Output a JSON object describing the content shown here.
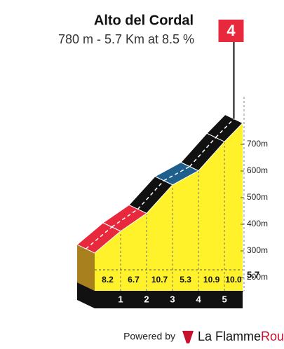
{
  "chart_data": {
    "type": "climb-profile",
    "title": "Alto del Cordal",
    "subtitle": "780 m - 5.7 Km at 8.5 %",
    "category": "4",
    "x": [
      0,
      1,
      2,
      3,
      4,
      5,
      5.7
    ],
    "elevations": [
      292,
      374,
      441,
      548,
      601,
      710,
      780
    ],
    "gradients": [
      8.2,
      6.7,
      10.7,
      5.3,
      10.9,
      10.0
    ],
    "value_labels": [
      "8.2",
      "6.7",
      "10.7",
      "5.3",
      "10.9",
      "10.0"
    ],
    "segment_colors": [
      "#e8283c",
      "#e8283c",
      "#111111",
      "#1f5f8b",
      "#111111",
      "#111111"
    ],
    "xlim": [
      0,
      5.7
    ],
    "xticks": [
      1,
      2,
      3,
      4,
      5,
      5.7
    ],
    "ylim": [
      150,
      800
    ],
    "yticks": [
      {
        "value": 200,
        "label": "200m"
      },
      {
        "value": 300,
        "label": "300m"
      },
      {
        "value": 400,
        "label": "400m"
      },
      {
        "value": 500,
        "label": "500m"
      },
      {
        "value": 600,
        "label": "600m"
      },
      {
        "value": 700,
        "label": "700m"
      }
    ],
    "fill_color": "#fff22a"
  },
  "footer": {
    "powered_by": "Powered by",
    "brand": "La Flamme",
    "brand_accent": "Rouge"
  }
}
